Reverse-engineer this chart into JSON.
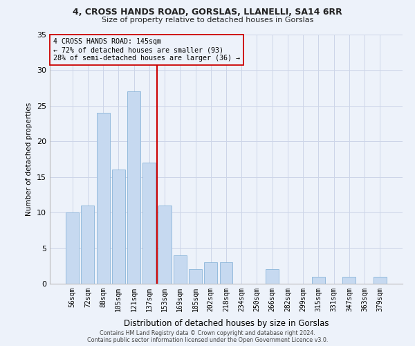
{
  "title1": "4, CROSS HANDS ROAD, GORSLAS, LLANELLI, SA14 6RR",
  "title2": "Size of property relative to detached houses in Gorslas",
  "xlabel": "Distribution of detached houses by size in Gorslas",
  "ylabel": "Number of detached properties",
  "categories": [
    "56sqm",
    "72sqm",
    "88sqm",
    "105sqm",
    "121sqm",
    "137sqm",
    "153sqm",
    "169sqm",
    "185sqm",
    "202sqm",
    "218sqm",
    "234sqm",
    "250sqm",
    "266sqm",
    "282sqm",
    "299sqm",
    "315sqm",
    "331sqm",
    "347sqm",
    "363sqm",
    "379sqm"
  ],
  "values": [
    10,
    11,
    24,
    16,
    27,
    17,
    11,
    4,
    2,
    3,
    3,
    0,
    0,
    2,
    0,
    0,
    1,
    0,
    1,
    0,
    1
  ],
  "bar_color": "#c6d9f0",
  "bar_edge_color": "#8ab4d9",
  "grid_color": "#ccd5e8",
  "background_color": "#edf2fa",
  "property_label": "4 CROSS HANDS ROAD: 145sqm",
  "annotation_line1": "← 72% of detached houses are smaller (93)",
  "annotation_line2": "28% of semi-detached houses are larger (36) →",
  "red_line_color": "#cc0000",
  "annotation_box_edge": "#cc0000",
  "footer1": "Contains HM Land Registry data © Crown copyright and database right 2024.",
  "footer2": "Contains public sector information licensed under the Open Government Licence v3.0.",
  "ylim": [
    0,
    35
  ],
  "yticks": [
    0,
    5,
    10,
    15,
    20,
    25,
    30,
    35
  ],
  "red_line_x": 5.5
}
